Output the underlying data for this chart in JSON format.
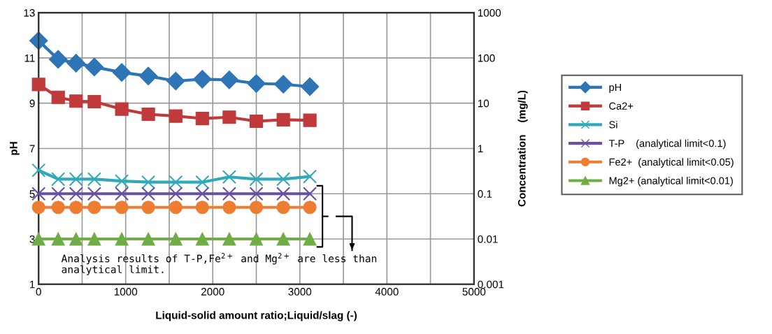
{
  "chart_data": {
    "type": "line",
    "xlabel": "Liquid-solid amount ratio;Liquid/slag (-)",
    "ylabel": "pH",
    "y2label": "Concentration    (mg/L)",
    "x": [
      0,
      225,
      430,
      640,
      955,
      1260,
      1575,
      1880,
      2190,
      2500,
      2810,
      3115
    ],
    "series": [
      {
        "name": "pH",
        "color": "#2e75b6",
        "marker": "diamond",
        "values": [
          11.76,
          10.94,
          10.77,
          10.6,
          10.36,
          10.2,
          9.98,
          10.06,
          10.03,
          9.87,
          9.84,
          9.73
        ]
      },
      {
        "name": "Ca2+",
        "color": "#c0393b",
        "marker": "square",
        "axis": "y2",
        "values": [
          26,
          13.5,
          11.1,
          10.8,
          7.4,
          5.7,
          5.2,
          4.6,
          4.9,
          4.0,
          4.3,
          4.2
        ]
      },
      {
        "name": "Si",
        "color": "#31a9b8",
        "marker": "cross",
        "axis": "y2",
        "values": [
          0.33,
          0.21,
          0.21,
          0.21,
          0.19,
          0.18,
          0.18,
          0.18,
          0.235,
          0.21,
          0.21,
          0.24
        ]
      },
      {
        "name": "T-P    (analytical limit<0.1)",
        "color": "#6a4fa3",
        "marker": "cross",
        "axis": "y2",
        "values": [
          0.1,
          0.1,
          0.1,
          0.1,
          0.1,
          0.1,
          0.1,
          0.1,
          0.1,
          0.1,
          0.1,
          0.1
        ]
      },
      {
        "name": "Fe2+  (analytical limit<0.05)",
        "color": "#ed7d31",
        "marker": "circle",
        "axis": "y2",
        "values": [
          0.05,
          0.05,
          0.05,
          0.05,
          0.05,
          0.05,
          0.05,
          0.05,
          0.05,
          0.05,
          0.05,
          0.05
        ]
      },
      {
        "name": "Mg2+ (analytical limit<0.01)",
        "color": "#70ad47",
        "marker": "triangle",
        "axis": "y2",
        "values": [
          0.01,
          0.01,
          0.01,
          0.01,
          0.01,
          0.01,
          0.01,
          0.01,
          0.01,
          0.01,
          0.01,
          0.01
        ]
      }
    ],
    "xlim": [
      0,
      5000
    ],
    "xticks": [
      0,
      1000,
      2000,
      3000,
      4000,
      5000
    ],
    "ylim": [
      1,
      13
    ],
    "yticks": [
      1,
      3,
      5,
      7,
      9,
      11,
      13
    ],
    "y2lim": [
      0.001,
      1000
    ],
    "y2ticks": [
      0.001,
      0.01,
      0.1,
      1,
      10,
      100,
      1000
    ],
    "log": "y2",
    "grid": true,
    "legend": "right",
    "line_style": "solid",
    "annotations": [
      "Analysis results of T-P,Fe$^{2+}$ and Mg$^{2+}$ are less than\nanalytical limit."
    ]
  }
}
